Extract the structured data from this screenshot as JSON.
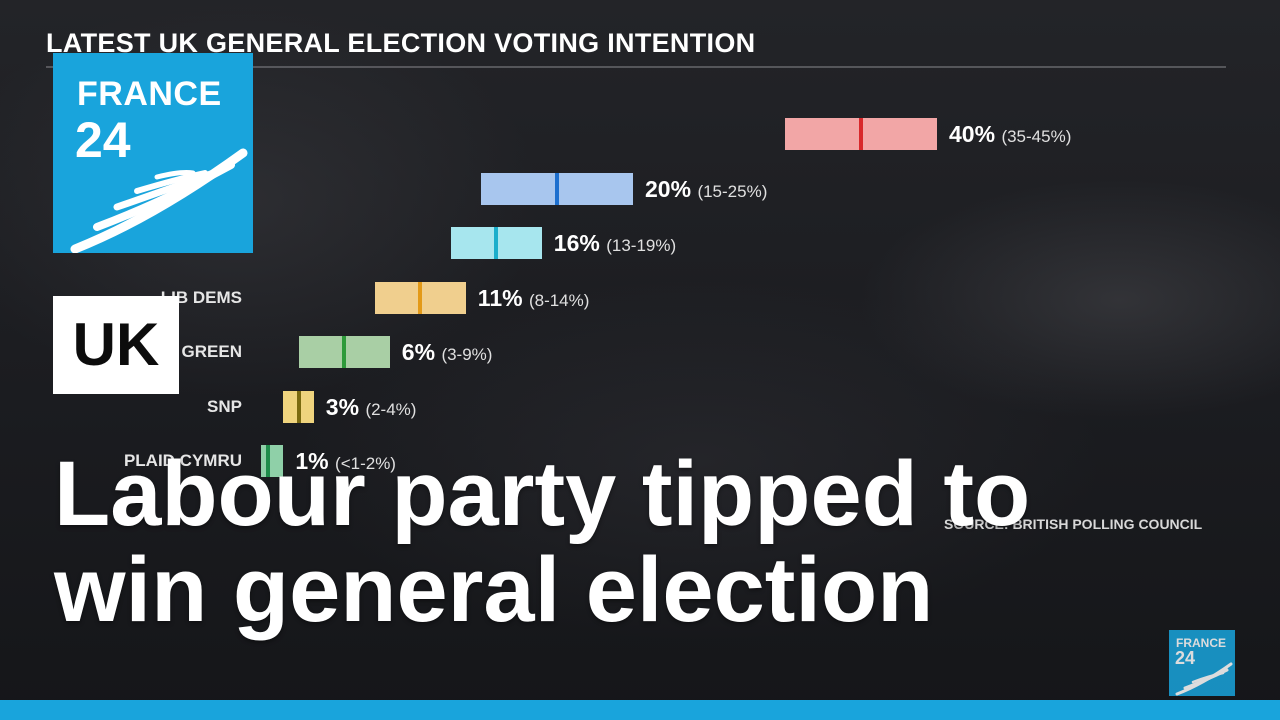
{
  "chart_title": "LATEST UK GENERAL ELECTION VOTING INTENTION",
  "brand": {
    "line1": "FRANCE",
    "line2": "24",
    "logo_color": "#19a4dc"
  },
  "section_badge": "UK",
  "headline": {
    "line1": "Labour party tipped to",
    "line2": "win general election"
  },
  "source_note": "SOURCE: BRITISH POLLING COUNCIL",
  "bug": {
    "line1": "FRANCE",
    "line2": "24"
  },
  "chart_data": {
    "type": "bar",
    "title": "LATEST UK GENERAL ELECTION VOTING INTENTION",
    "orientation": "horizontal",
    "unit": "%",
    "series": [
      {
        "name": "",
        "value": 40,
        "low": 35,
        "high": 45,
        "pct_label": "40%",
        "range_label": "(35-45%)",
        "color": "#f2a6a6",
        "mark_color": "#d8282b"
      },
      {
        "name": "",
        "value": 20,
        "low": 15,
        "high": 25,
        "pct_label": "20%",
        "range_label": "(15-25%)",
        "color": "#a8c6ee",
        "mark_color": "#1d6fce"
      },
      {
        "name": "",
        "value": 16,
        "low": 13,
        "high": 19,
        "pct_label": "16%",
        "range_label": "(13-19%)",
        "color": "#a7e6ee",
        "mark_color": "#1aaecb"
      },
      {
        "name": "LIB DEMS",
        "value": 11,
        "low": 8,
        "high": 14,
        "pct_label": "11%",
        "range_label": "(8-14%)",
        "color": "#f0cf8e",
        "mark_color": "#e39a18"
      },
      {
        "name": "GREEN",
        "value": 6,
        "low": 3,
        "high": 9,
        "pct_label": "6%",
        "range_label": "(3-9%)",
        "color": "#a9cfa5",
        "mark_color": "#2e9a3a"
      },
      {
        "name": "SNP",
        "value": 3,
        "low": 2,
        "high": 4,
        "pct_label": "3%",
        "range_label": "(2-4%)",
        "color": "#efd47e",
        "mark_color": "#7a6a10"
      },
      {
        "name": "PLAID CYMRU",
        "value": 1,
        "low": 0.5,
        "high": 2,
        "pct_label": "1%",
        "range_label": "(<1-2%)",
        "color": "#8fd0a8",
        "mark_color": "#1e8c4a"
      }
    ]
  }
}
